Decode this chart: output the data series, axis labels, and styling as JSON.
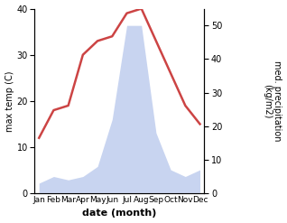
{
  "months": [
    "Jan",
    "Feb",
    "Mar",
    "Apr",
    "May",
    "Jun",
    "Jul",
    "Aug",
    "Sep",
    "Oct",
    "Nov",
    "Dec"
  ],
  "temperature": [
    12,
    18,
    19,
    30,
    33,
    34,
    39,
    40,
    33,
    26,
    19,
    15
  ],
  "precipitation": [
    3,
    5,
    4,
    5,
    8,
    22,
    50,
    50,
    18,
    7,
    5,
    7
  ],
  "temp_color": "#cc4444",
  "precip_fill_color": "#c8d4f0",
  "ylabel_left": "max temp (C)",
  "ylabel_right": "med. precipitation\n(kg/m2)",
  "xlabel": "date (month)",
  "ylim_left": [
    0,
    40
  ],
  "ylim_right": [
    0,
    55
  ],
  "yticks_left": [
    0,
    10,
    20,
    30,
    40
  ],
  "yticks_right": [
    0,
    10,
    20,
    30,
    40,
    50
  ],
  "background_color": "#ffffff",
  "temp_linewidth": 1.8
}
